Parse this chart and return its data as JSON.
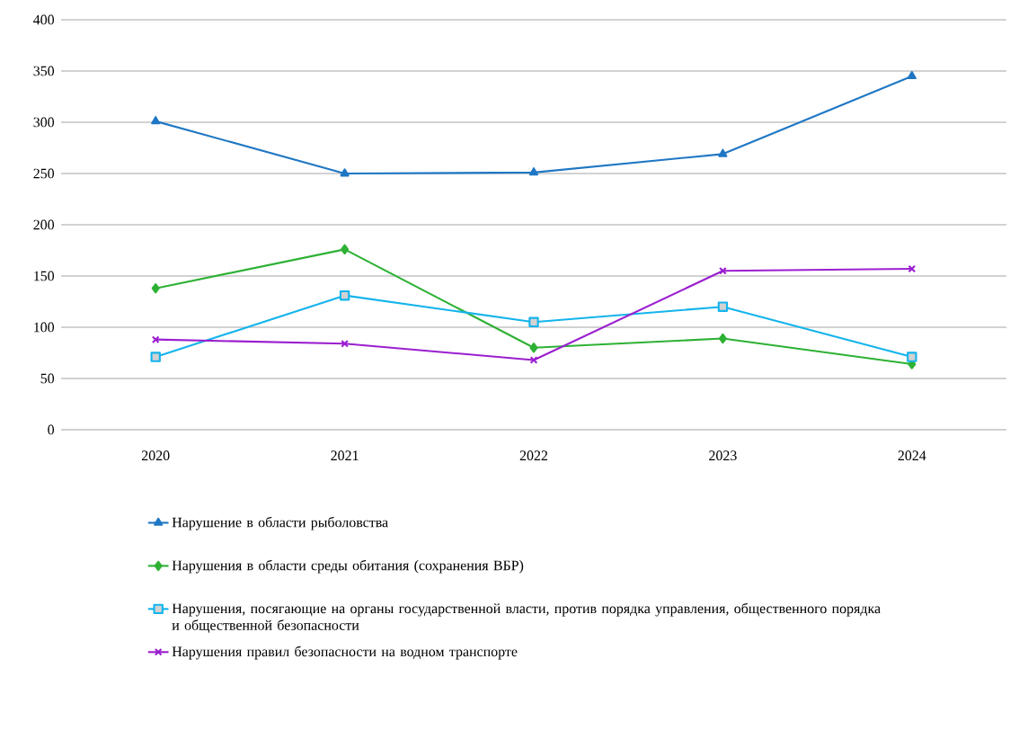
{
  "chart_data": {
    "type": "line",
    "categories": [
      "2020",
      "2021",
      "2022",
      "2023",
      "2024"
    ],
    "ylim": [
      0,
      400
    ],
    "yticks": [
      0,
      50,
      100,
      150,
      200,
      250,
      300,
      350,
      400
    ],
    "grid": "y",
    "legend": "bottom",
    "line_style": "solid",
    "series": [
      {
        "name": "Нарушение в области рыболовства",
        "color": "#1f77c4",
        "marker": "triangle",
        "values": [
          301,
          250,
          251,
          269,
          345
        ]
      },
      {
        "name": "Нарушения в области среды обитания (сохранения ВБР)",
        "color": "#2eb135",
        "marker": "diamond",
        "values": [
          138,
          176,
          80,
          89,
          64
        ]
      },
      {
        "name": "Нарушения, посягающие на органы государственной власти, против порядка управления, общественного порядка и общественной безопасности",
        "color": "#14b4ec",
        "marker": "square",
        "values": [
          71,
          131,
          105,
          120,
          71
        ]
      },
      {
        "name": "Нарушения правил безопасности на водном транспорте",
        "color": "#9b1fd0",
        "marker": "cross",
        "values": [
          88,
          84,
          68,
          155,
          157
        ]
      }
    ]
  }
}
